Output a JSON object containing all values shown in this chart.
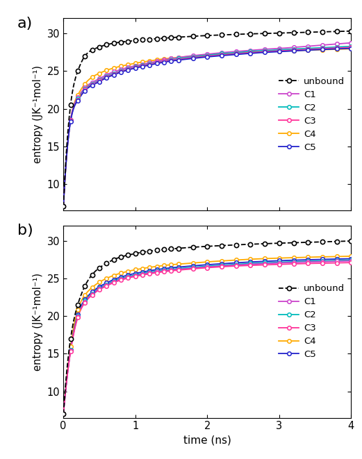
{
  "xlabel": "time (ns)",
  "ylabel": "entropy (JK⁻¹mol⁻¹)",
  "xlim": [
    0,
    4
  ],
  "ylim": [
    6.5,
    32
  ],
  "xticks": [
    0,
    1,
    2,
    3,
    4
  ],
  "yticks": [
    10,
    15,
    20,
    25,
    30
  ],
  "colors": {
    "unbound": "#000000",
    "C1": "#cc44cc",
    "C2": "#00bbbb",
    "C3": "#ff3399",
    "C4": "#ffaa00",
    "C5": "#2222cc"
  },
  "bg_color": "#f0f0f0",
  "panel_a": {
    "unbound": {
      "x": [
        0.0,
        0.1,
        0.2,
        0.3,
        0.4,
        0.5,
        0.6,
        0.7,
        0.8,
        0.9,
        1.0,
        1.1,
        1.2,
        1.3,
        1.4,
        1.5,
        1.6,
        1.8,
        2.0,
        2.2,
        2.4,
        2.6,
        2.8,
        3.0,
        3.2,
        3.4,
        3.6,
        3.8,
        4.0
      ],
      "y": [
        7.0,
        20.5,
        25.0,
        27.0,
        27.8,
        28.2,
        28.5,
        28.7,
        28.85,
        28.95,
        29.05,
        29.15,
        29.22,
        29.3,
        29.38,
        29.45,
        29.5,
        29.62,
        29.72,
        29.8,
        29.88,
        29.94,
        30.0,
        30.05,
        30.1,
        30.15,
        30.2,
        30.25,
        30.32
      ]
    },
    "C1": {
      "x": [
        0.0,
        0.1,
        0.2,
        0.3,
        0.4,
        0.5,
        0.6,
        0.7,
        0.8,
        0.9,
        1.0,
        1.1,
        1.2,
        1.3,
        1.4,
        1.5,
        1.6,
        1.8,
        2.0,
        2.2,
        2.4,
        2.6,
        2.8,
        3.0,
        3.2,
        3.4,
        3.6,
        3.8,
        4.0
      ],
      "y": [
        7.0,
        18.5,
        21.5,
        22.8,
        23.5,
        24.0,
        24.5,
        24.9,
        25.2,
        25.5,
        25.7,
        25.9,
        26.1,
        26.3,
        26.5,
        26.65,
        26.8,
        27.05,
        27.25,
        27.45,
        27.6,
        27.75,
        27.9,
        28.0,
        28.15,
        28.3,
        28.45,
        28.6,
        28.75
      ]
    },
    "C2": {
      "x": [
        0.0,
        0.1,
        0.2,
        0.3,
        0.4,
        0.5,
        0.6,
        0.7,
        0.8,
        0.9,
        1.0,
        1.1,
        1.2,
        1.3,
        1.4,
        1.5,
        1.6,
        1.8,
        2.0,
        2.2,
        2.4,
        2.6,
        2.8,
        3.0,
        3.2,
        3.4,
        3.6,
        3.8,
        4.0
      ],
      "y": [
        7.0,
        18.4,
        21.3,
        22.6,
        23.3,
        23.8,
        24.3,
        24.7,
        25.0,
        25.3,
        25.55,
        25.75,
        25.95,
        26.15,
        26.35,
        26.5,
        26.65,
        26.9,
        27.1,
        27.3,
        27.45,
        27.6,
        27.72,
        27.82,
        27.92,
        28.02,
        28.1,
        28.2,
        28.28
      ]
    },
    "C3": {
      "x": [
        0.0,
        0.1,
        0.2,
        0.3,
        0.4,
        0.5,
        0.6,
        0.7,
        0.8,
        0.9,
        1.0,
        1.1,
        1.2,
        1.3,
        1.4,
        1.5,
        1.6,
        1.8,
        2.0,
        2.2,
        2.4,
        2.6,
        2.8,
        3.0,
        3.2,
        3.4,
        3.6,
        3.8,
        4.0
      ],
      "y": [
        7.0,
        18.4,
        21.2,
        22.5,
        23.2,
        23.7,
        24.2,
        24.6,
        24.95,
        25.25,
        25.5,
        25.7,
        25.9,
        26.1,
        26.28,
        26.43,
        26.55,
        26.78,
        26.98,
        27.15,
        27.3,
        27.45,
        27.58,
        27.68,
        27.78,
        27.88,
        27.98,
        28.06,
        28.14
      ]
    },
    "C4": {
      "x": [
        0.0,
        0.1,
        0.2,
        0.3,
        0.4,
        0.5,
        0.6,
        0.7,
        0.8,
        0.9,
        1.0,
        1.1,
        1.2,
        1.3,
        1.4,
        1.5,
        1.6,
        1.8,
        2.0,
        2.2,
        2.4,
        2.6,
        2.8,
        3.0,
        3.2,
        3.4,
        3.6,
        3.8,
        4.0
      ],
      "y": [
        7.0,
        18.5,
        21.8,
        23.3,
        24.2,
        24.7,
        25.1,
        25.4,
        25.65,
        25.85,
        26.05,
        26.2,
        26.35,
        26.5,
        26.62,
        26.72,
        26.82,
        27.0,
        27.15,
        27.28,
        27.4,
        27.5,
        27.58,
        27.65,
        27.72,
        27.78,
        27.84,
        27.9,
        27.95
      ]
    },
    "C5": {
      "x": [
        0.0,
        0.1,
        0.2,
        0.3,
        0.4,
        0.5,
        0.6,
        0.7,
        0.8,
        0.9,
        1.0,
        1.1,
        1.2,
        1.3,
        1.4,
        1.5,
        1.6,
        1.8,
        2.0,
        2.2,
        2.4,
        2.6,
        2.8,
        3.0,
        3.2,
        3.4,
        3.6,
        3.8,
        4.0
      ],
      "y": [
        7.0,
        18.3,
        21.1,
        22.4,
        23.1,
        23.6,
        24.1,
        24.5,
        24.85,
        25.15,
        25.4,
        25.6,
        25.8,
        26.0,
        26.18,
        26.33,
        26.45,
        26.68,
        26.88,
        27.05,
        27.2,
        27.35,
        27.48,
        27.58,
        27.68,
        27.78,
        27.86,
        27.94,
        28.02
      ]
    }
  },
  "panel_b": {
    "unbound": {
      "x": [
        0.0,
        0.1,
        0.2,
        0.3,
        0.4,
        0.5,
        0.6,
        0.7,
        0.8,
        0.9,
        1.0,
        1.1,
        1.2,
        1.3,
        1.4,
        1.5,
        1.6,
        1.8,
        2.0,
        2.2,
        2.4,
        2.6,
        2.8,
        3.0,
        3.2,
        3.4,
        3.6,
        3.8,
        4.0
      ],
      "y": [
        7.0,
        17.0,
        21.5,
        24.0,
        25.5,
        26.4,
        27.0,
        27.5,
        27.85,
        28.1,
        28.3,
        28.48,
        28.62,
        28.74,
        28.84,
        28.92,
        29.0,
        29.14,
        29.26,
        29.36,
        29.46,
        29.54,
        29.62,
        29.68,
        29.74,
        29.8,
        29.85,
        29.9,
        29.98
      ]
    },
    "C4": {
      "x": [
        0.0,
        0.1,
        0.2,
        0.3,
        0.4,
        0.5,
        0.6,
        0.7,
        0.8,
        0.9,
        1.0,
        1.1,
        1.2,
        1.3,
        1.4,
        1.5,
        1.6,
        1.8,
        2.0,
        2.2,
        2.4,
        2.6,
        2.8,
        3.0,
        3.2,
        3.4,
        3.6,
        3.8,
        4.0
      ],
      "y": [
        7.0,
        16.0,
        20.8,
        22.8,
        23.8,
        24.5,
        25.0,
        25.4,
        25.7,
        25.95,
        26.15,
        26.32,
        26.47,
        26.6,
        26.72,
        26.82,
        26.9,
        27.05,
        27.2,
        27.32,
        27.44,
        27.55,
        27.63,
        27.7,
        27.76,
        27.82,
        27.86,
        27.9,
        27.95
      ]
    },
    "C5": {
      "x": [
        0.0,
        0.1,
        0.2,
        0.3,
        0.4,
        0.5,
        0.6,
        0.7,
        0.8,
        0.9,
        1.0,
        1.1,
        1.2,
        1.3,
        1.4,
        1.5,
        1.6,
        1.8,
        2.0,
        2.2,
        2.4,
        2.6,
        2.8,
        3.0,
        3.2,
        3.4,
        3.6,
        3.8,
        4.0
      ],
      "y": [
        7.0,
        15.5,
        20.2,
        22.2,
        23.2,
        23.9,
        24.4,
        24.85,
        25.18,
        25.45,
        25.67,
        25.85,
        26.02,
        26.17,
        26.3,
        26.41,
        26.5,
        26.67,
        26.82,
        26.95,
        27.07,
        27.18,
        27.27,
        27.35,
        27.42,
        27.48,
        27.53,
        27.58,
        27.62
      ]
    },
    "C2": {
      "x": [
        0.0,
        0.1,
        0.2,
        0.3,
        0.4,
        0.5,
        0.6,
        0.7,
        0.8,
        0.9,
        1.0,
        1.1,
        1.2,
        1.3,
        1.4,
        1.5,
        1.6,
        1.8,
        2.0,
        2.2,
        2.4,
        2.6,
        2.8,
        3.0,
        3.2,
        3.4,
        3.6,
        3.8,
        4.0
      ],
      "y": [
        7.0,
        15.5,
        20.0,
        22.0,
        23.0,
        23.7,
        24.2,
        24.65,
        24.98,
        25.25,
        25.47,
        25.65,
        25.82,
        25.97,
        26.1,
        26.21,
        26.3,
        26.47,
        26.62,
        26.75,
        26.87,
        26.98,
        27.07,
        27.15,
        27.22,
        27.28,
        27.33,
        27.38,
        27.42
      ]
    },
    "C1": {
      "x": [
        0.0,
        0.1,
        0.2,
        0.3,
        0.4,
        0.5,
        0.6,
        0.7,
        0.8,
        0.9,
        1.0,
        1.1,
        1.2,
        1.3,
        1.4,
        1.5,
        1.6,
        1.8,
        2.0,
        2.2,
        2.4,
        2.6,
        2.8,
        3.0,
        3.2,
        3.4,
        3.6,
        3.8,
        4.0
      ],
      "y": [
        7.0,
        15.4,
        19.9,
        21.9,
        22.9,
        23.6,
        24.1,
        24.55,
        24.88,
        25.15,
        25.37,
        25.55,
        25.72,
        25.87,
        26.0,
        26.11,
        26.2,
        26.37,
        26.52,
        26.65,
        26.77,
        26.88,
        26.97,
        27.05,
        27.12,
        27.18,
        27.23,
        27.28,
        27.32
      ]
    },
    "C3": {
      "x": [
        0.0,
        0.1,
        0.2,
        0.3,
        0.4,
        0.5,
        0.6,
        0.7,
        0.8,
        0.9,
        1.0,
        1.1,
        1.2,
        1.3,
        1.4,
        1.5,
        1.6,
        1.8,
        2.0,
        2.2,
        2.4,
        2.6,
        2.8,
        3.0,
        3.2,
        3.4,
        3.6,
        3.8,
        4.0
      ],
      "y": [
        7.0,
        15.3,
        19.8,
        21.8,
        22.8,
        23.5,
        24.0,
        24.45,
        24.78,
        25.05,
        25.27,
        25.45,
        25.62,
        25.77,
        25.9,
        26.01,
        26.1,
        26.27,
        26.42,
        26.55,
        26.65,
        26.73,
        26.8,
        26.87,
        26.93,
        26.98,
        27.02,
        27.06,
        27.1
      ]
    }
  },
  "legend_order_a": [
    "unbound",
    "C1",
    "C2",
    "C3",
    "C4",
    "C5"
  ],
  "legend_order_b": [
    "unbound",
    "C1",
    "C2",
    "C3",
    "C4",
    "C5"
  ]
}
